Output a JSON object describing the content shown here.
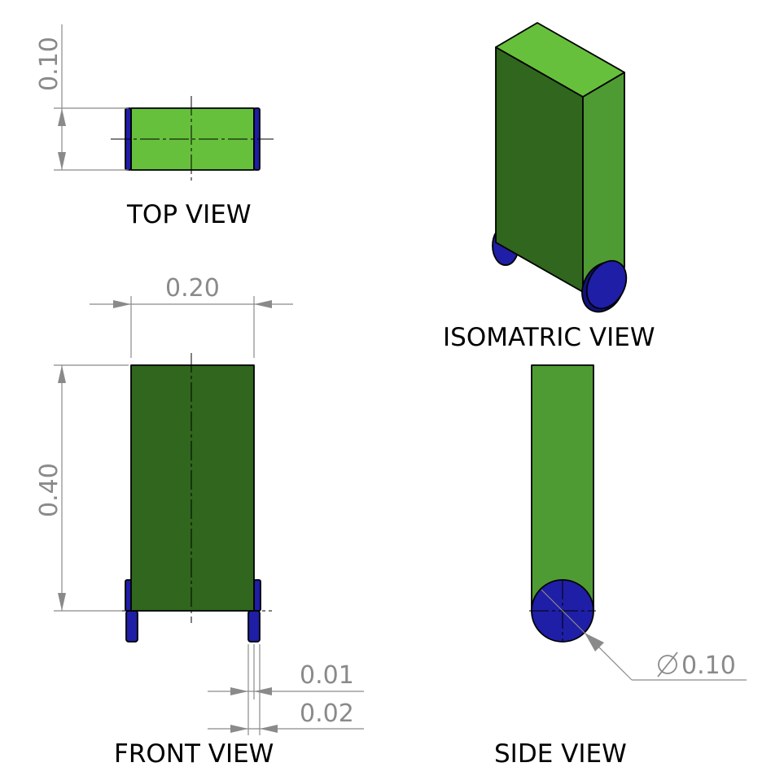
{
  "views": {
    "top": "TOP VIEW",
    "front": "FRONT VIEW",
    "isometric": "ISOMATRIC VIEW",
    "side": "SIDE VIEW"
  },
  "dimensions": {
    "top_depth": "0.10",
    "front_width": "0.20",
    "front_height": "0.40",
    "wheel_width_a": "0.01",
    "wheel_width_b": "0.02",
    "wheel_diameter": "0.10"
  },
  "colors": {
    "body_light": "#67c03c",
    "body_mid": "#4e9b33",
    "body_dark": "#30661d",
    "wheel": "#1f1ea6",
    "wheel_dark": "#12127a",
    "dimension": "#8a8a8a"
  }
}
